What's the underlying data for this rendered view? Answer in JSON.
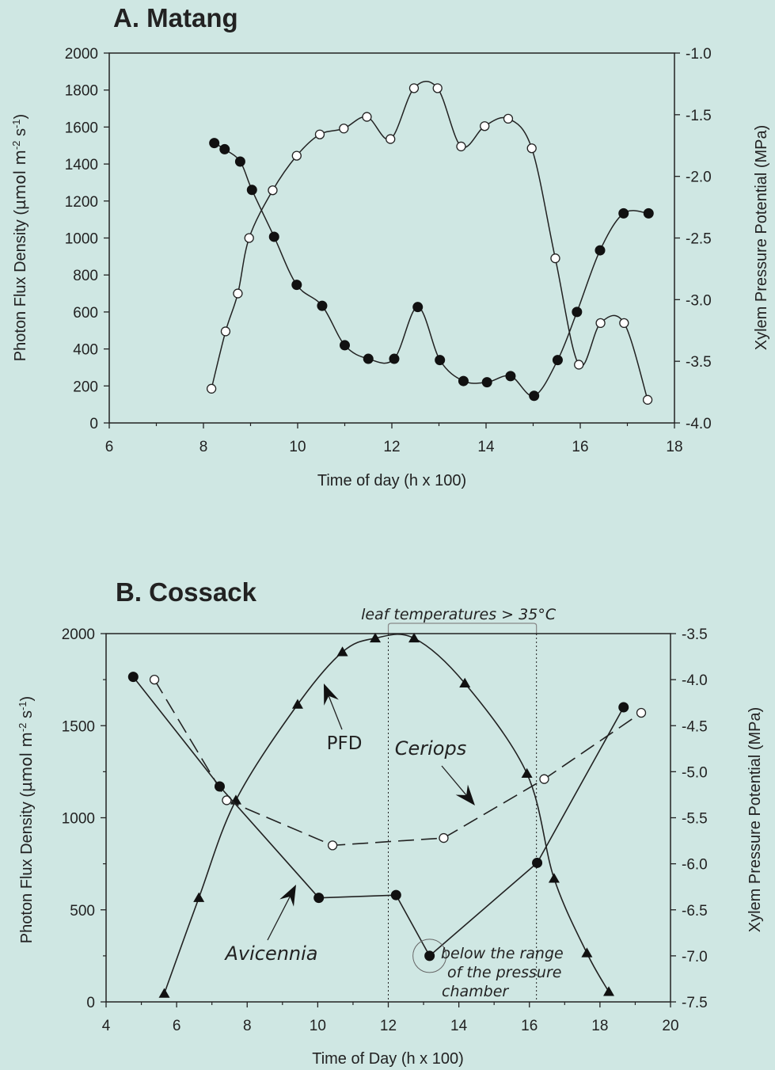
{
  "chart_data": [
    {
      "type": "line",
      "title": "A. Matang",
      "xlabel": "Time of day (h x 100)",
      "ylabel": "Photon Flux Density (µmol m⁻² s⁻¹)",
      "ylabel_parts": [
        "Photon Flux Density (",
        "µmol m",
        "-2",
        " s",
        "-1",
        ")"
      ],
      "y2label": "Xylem Pressure Potential (MPa)",
      "xlim": [
        6,
        18
      ],
      "ylim": [
        0,
        2000
      ],
      "y2lim": [
        -4.0,
        -1.0
      ],
      "xticks": [
        "6",
        "8",
        "10",
        "12",
        "14",
        "16",
        "18"
      ],
      "yticks": [
        "0",
        "200",
        "400",
        "600",
        "800",
        "1000",
        "1200",
        "1400",
        "1600",
        "1800",
        "2000"
      ],
      "y2ticks": [
        "-1.0",
        "-1.5",
        "-2.0",
        "-2.5",
        "-3.0",
        "-3.5",
        "-4.0"
      ],
      "grid": false,
      "series": [
        {
          "marker": "open-circle",
          "axis": "left",
          "x": [
            8.17,
            8.47,
            8.73,
            8.97,
            9.47,
            9.98,
            10.47,
            10.98,
            11.47,
            11.97,
            12.47,
            12.97,
            13.47,
            13.97,
            14.47,
            14.97,
            15.47,
            15.97,
            16.43,
            16.93,
            17.43
          ],
          "y": [
            185,
            495,
            700,
            1000,
            1258,
            1445,
            1560,
            1592,
            1655,
            1535,
            1810,
            1810,
            1495,
            1605,
            1645,
            1485,
            890,
            315,
            540,
            540,
            125
          ]
        },
        {
          "marker": "filled-circle",
          "axis": "right",
          "x": [
            8.23,
            8.45,
            8.78,
            9.03,
            9.5,
            9.98,
            10.52,
            11.0,
            11.5,
            12.05,
            12.55,
            13.02,
            13.52,
            14.02,
            14.52,
            15.02,
            15.52,
            15.93,
            16.42,
            16.92,
            17.45
          ],
          "y": [
            -1.73,
            -1.78,
            -1.88,
            -2.11,
            -2.49,
            -2.88,
            -3.05,
            -3.37,
            -3.48,
            -3.48,
            -3.06,
            -3.49,
            -3.66,
            -3.67,
            -3.62,
            -3.78,
            -3.49,
            -3.1,
            -2.6,
            -2.3,
            -2.3
          ]
        }
      ]
    },
    {
      "type": "line",
      "title": "B. Cossack",
      "xlabel": "Time of Day (h x 100)",
      "ylabel": "Photon Flux Density (µmol m⁻² s⁻¹)",
      "ylabel_parts": [
        "Photon Flux Density (",
        "µmol m",
        "-2",
        " s",
        "-1",
        ")"
      ],
      "y2label": "Xylem Pressure Potential (MPa)",
      "xlim": [
        4,
        20
      ],
      "ylim": [
        0,
        2000
      ],
      "y2lim": [
        -7.5,
        -3.5
      ],
      "xticks": [
        "4",
        "6",
        "8",
        "10",
        "12",
        "14",
        "16",
        "18",
        "20"
      ],
      "yticks": [
        "0",
        "500",
        "1000",
        "1500",
        "2000"
      ],
      "y2ticks": [
        "-3.5",
        "-4.0",
        "-4.5",
        "-5.0",
        "-5.5",
        "-6.0",
        "-6.5",
        "-7.0",
        "-7.5"
      ],
      "grid": false,
      "series": [
        {
          "name": "PFD",
          "marker": "filled-triangle",
          "axis": "left",
          "x": [
            5.65,
            6.63,
            7.68,
            9.43,
            10.7,
            11.63,
            12.73,
            14.17,
            15.93,
            16.7,
            17.63,
            18.25
          ],
          "y": [
            45,
            565,
            1095,
            1615,
            1900,
            1975,
            1975,
            1730,
            1240,
            670,
            265,
            55
          ]
        },
        {
          "name": "Ceriops",
          "marker": "open-circle",
          "axis": "right",
          "dashed": true,
          "x": [
            5.37,
            7.42,
            10.42,
            13.57,
            16.42,
            19.17
          ],
          "y": [
            -4.0,
            -5.31,
            -5.8,
            -5.72,
            -5.08,
            -4.36
          ]
        },
        {
          "name": "Avicennia",
          "marker": "filled-circle",
          "axis": "right",
          "x": [
            4.77,
            7.22,
            10.03,
            12.22,
            13.17,
            16.22,
            18.67
          ],
          "y": [
            -3.97,
            -5.16,
            -6.37,
            -6.34,
            -7.0,
            -5.99,
            -4.3
          ]
        }
      ],
      "annotations": {
        "shaded_band_label": "leaf temperatures > 35°C",
        "shaded_band_x": [
          12.0,
          16.2
        ],
        "pfd_label": "PFD",
        "ceriops_label": "Ceriops",
        "avicennia_label": "Avicennia",
        "note_lines": [
          "below the range",
          "of the pressure",
          "chamber"
        ]
      }
    }
  ]
}
